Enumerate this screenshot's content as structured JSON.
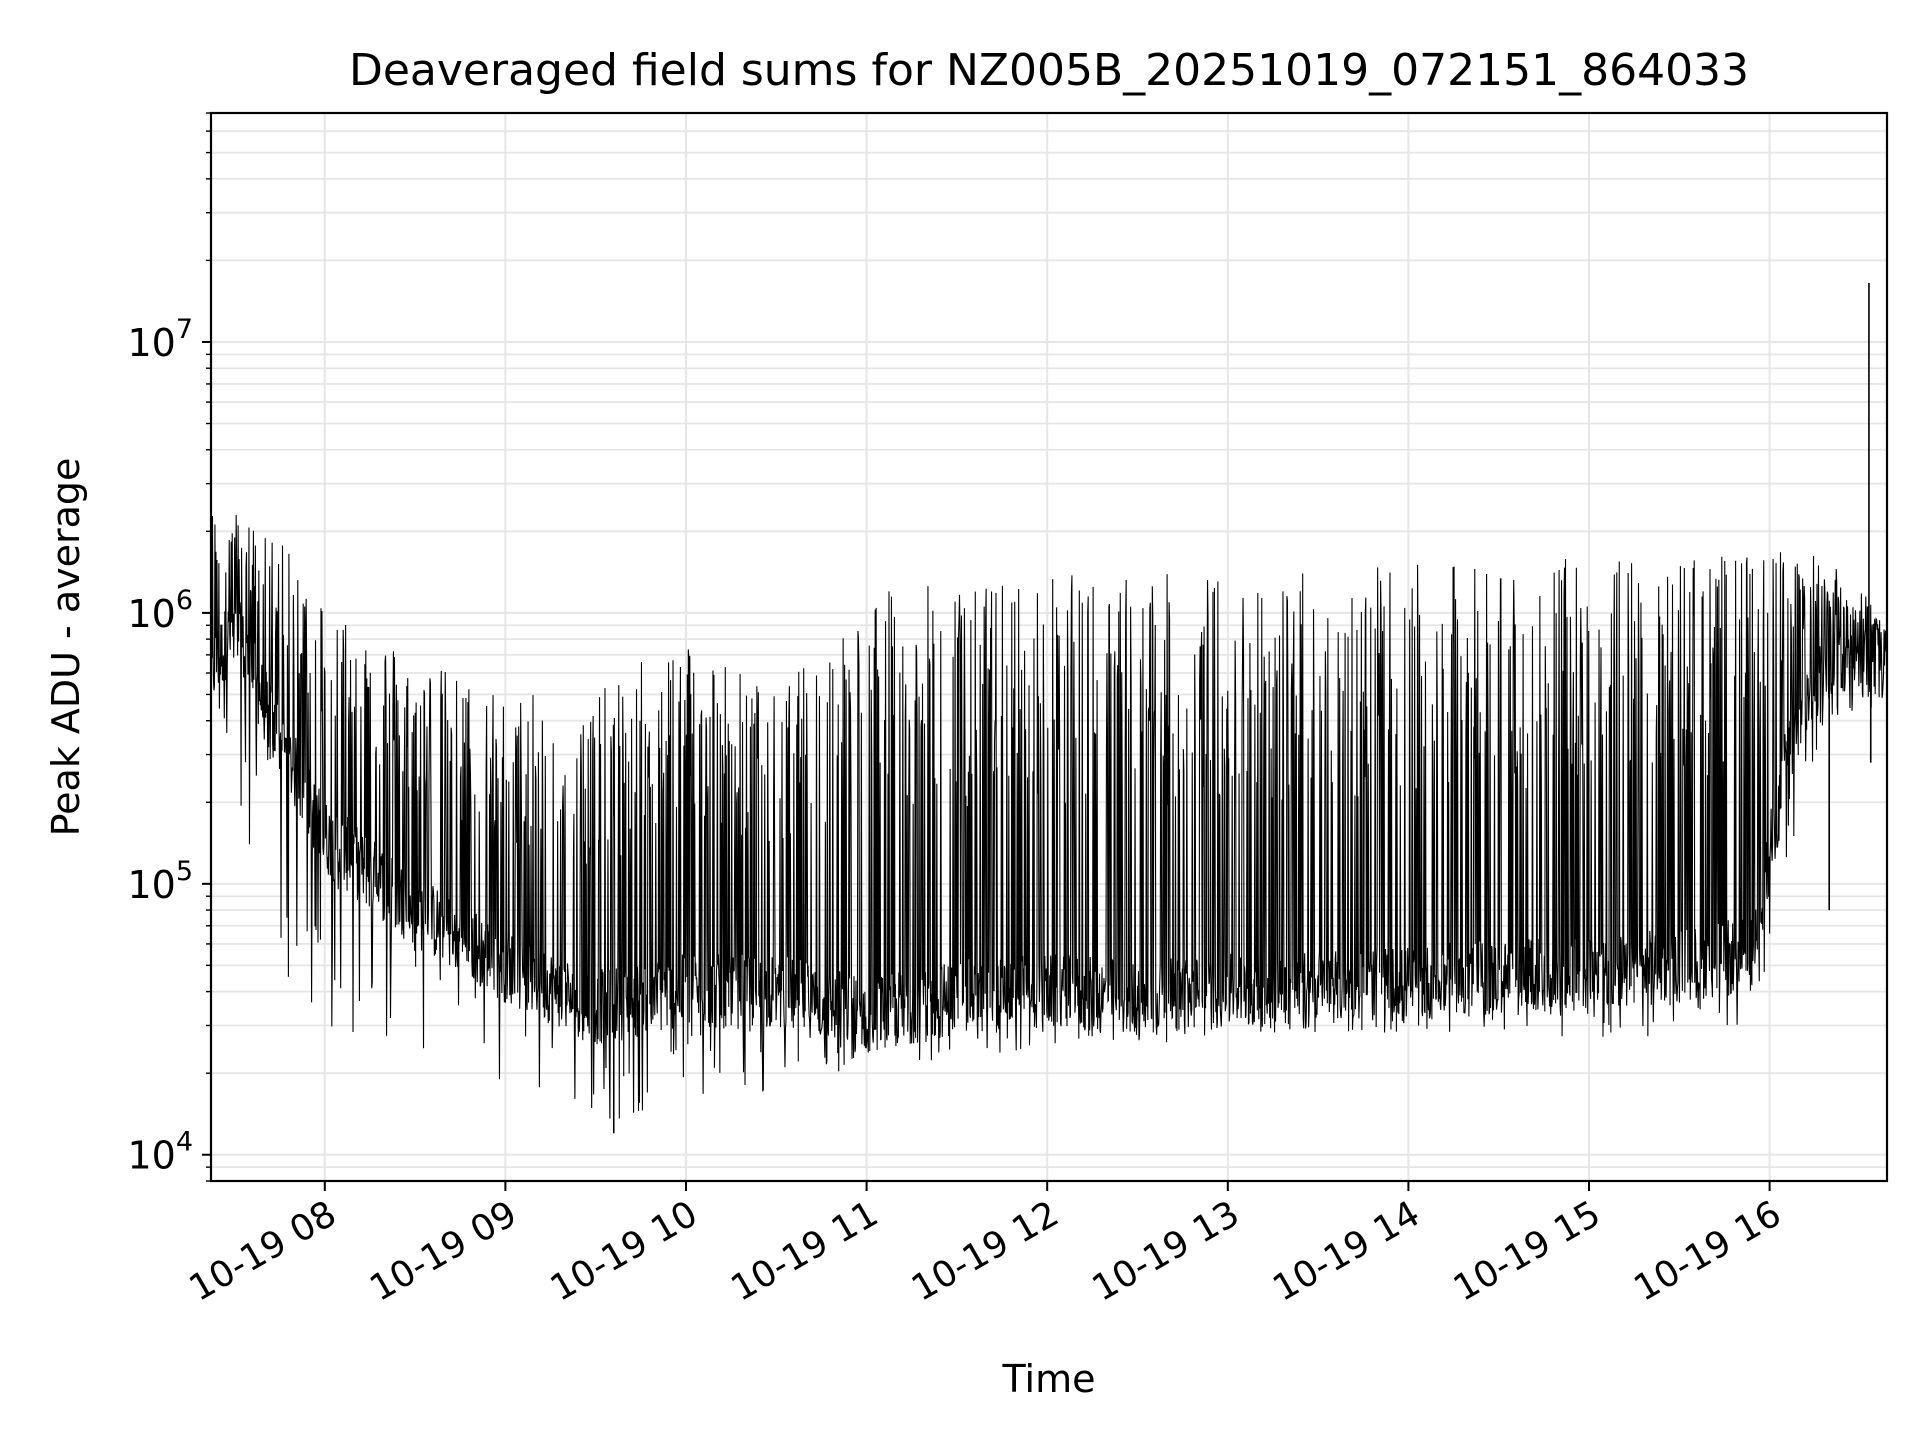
{
  "chart_data": {
    "type": "line",
    "title": "Deaveraged field sums for NZ005B_20251019_072151_864033",
    "xlabel": "Time",
    "ylabel": "Peak ADU - average",
    "yscale": "log",
    "ylim": [
      8000,
      70000000
    ],
    "xlim_hours": [
      7.37,
      16.65
    ],
    "x_ticks": [
      {
        "label": "10-19 08",
        "hour": 8
      },
      {
        "label": "10-19 09",
        "hour": 9
      },
      {
        "label": "10-19 10",
        "hour": 10
      },
      {
        "label": "10-19 11",
        "hour": 11
      },
      {
        "label": "10-19 12",
        "hour": 12
      },
      {
        "label": "10-19 13",
        "hour": 13
      },
      {
        "label": "10-19 14",
        "hour": 14
      },
      {
        "label": "10-19 15",
        "hour": 15
      },
      {
        "label": "10-19 16",
        "hour": 16
      }
    ],
    "y_ticks": [
      {
        "base": "10",
        "exp": "4",
        "value": 10000
      },
      {
        "base": "10",
        "exp": "5",
        "value": 100000
      },
      {
        "base": "10",
        "exp": "6",
        "value": 1000000
      },
      {
        "base": "10",
        "exp": "7",
        "value": 10000000
      }
    ],
    "grid": true,
    "line_color": "#000000",
    "grid_color": "#e6e6e6",
    "series": [
      {
        "name": "Peak ADU - average",
        "envelope": [
          {
            "hour": 7.37,
            "baseline": 600000,
            "low": 300000,
            "high": 2500000
          },
          {
            "hour": 7.5,
            "baseline": 900000,
            "low": 250000,
            "high": 2400000
          },
          {
            "hour": 7.7,
            "baseline": 400000,
            "low": 60000,
            "high": 2000000
          },
          {
            "hour": 8.0,
            "baseline": 150000,
            "low": 25000,
            "high": 1200000
          },
          {
            "hour": 8.5,
            "baseline": 80000,
            "low": 20000,
            "high": 700000
          },
          {
            "hour": 9.0,
            "baseline": 50000,
            "low": 18000,
            "high": 500000
          },
          {
            "hour": 9.5,
            "baseline": 35000,
            "low": 13000,
            "high": 500000
          },
          {
            "hour": 10.0,
            "baseline": 40000,
            "low": 15000,
            "high": 900000
          },
          {
            "hour": 10.5,
            "baseline": 40000,
            "low": 17000,
            "high": 500000
          },
          {
            "hour": 11.0,
            "baseline": 33000,
            "low": 20000,
            "high": 1200000
          },
          {
            "hour": 11.5,
            "baseline": 38000,
            "low": 22000,
            "high": 1300000
          },
          {
            "hour": 12.0,
            "baseline": 40000,
            "low": 25000,
            "high": 1400000
          },
          {
            "hour": 12.5,
            "baseline": 38000,
            "low": 25000,
            "high": 1400000
          },
          {
            "hour": 13.0,
            "baseline": 40000,
            "low": 28000,
            "high": 1400000
          },
          {
            "hour": 13.5,
            "baseline": 42000,
            "low": 28000,
            "high": 1450000
          },
          {
            "hour": 14.0,
            "baseline": 43000,
            "low": 28000,
            "high": 1500000
          },
          {
            "hour": 14.5,
            "baseline": 45000,
            "low": 28000,
            "high": 1550000
          },
          {
            "hour": 15.0,
            "baseline": 47000,
            "low": 27000,
            "high": 1600000
          },
          {
            "hour": 15.5,
            "baseline": 50000,
            "low": 27000,
            "high": 1650000
          },
          {
            "hour": 15.9,
            "baseline": 55000,
            "low": 30000,
            "high": 1650000
          },
          {
            "hour": 16.1,
            "baseline": 300000,
            "low": 90000,
            "high": 1800000
          },
          {
            "hour": 16.3,
            "baseline": 700000,
            "low": 400000,
            "high": 1600000
          },
          {
            "hour": 16.65,
            "baseline": 650000,
            "low": 400000,
            "high": 1000000
          }
        ],
        "notable_points": [
          {
            "hour": 16.55,
            "value": 16500000
          },
          {
            "hour": 16.33,
            "value": 80000
          },
          {
            "hour": 16.56,
            "value": 280000
          },
          {
            "hour": 9.6,
            "value": 12000
          }
        ]
      }
    ]
  }
}
